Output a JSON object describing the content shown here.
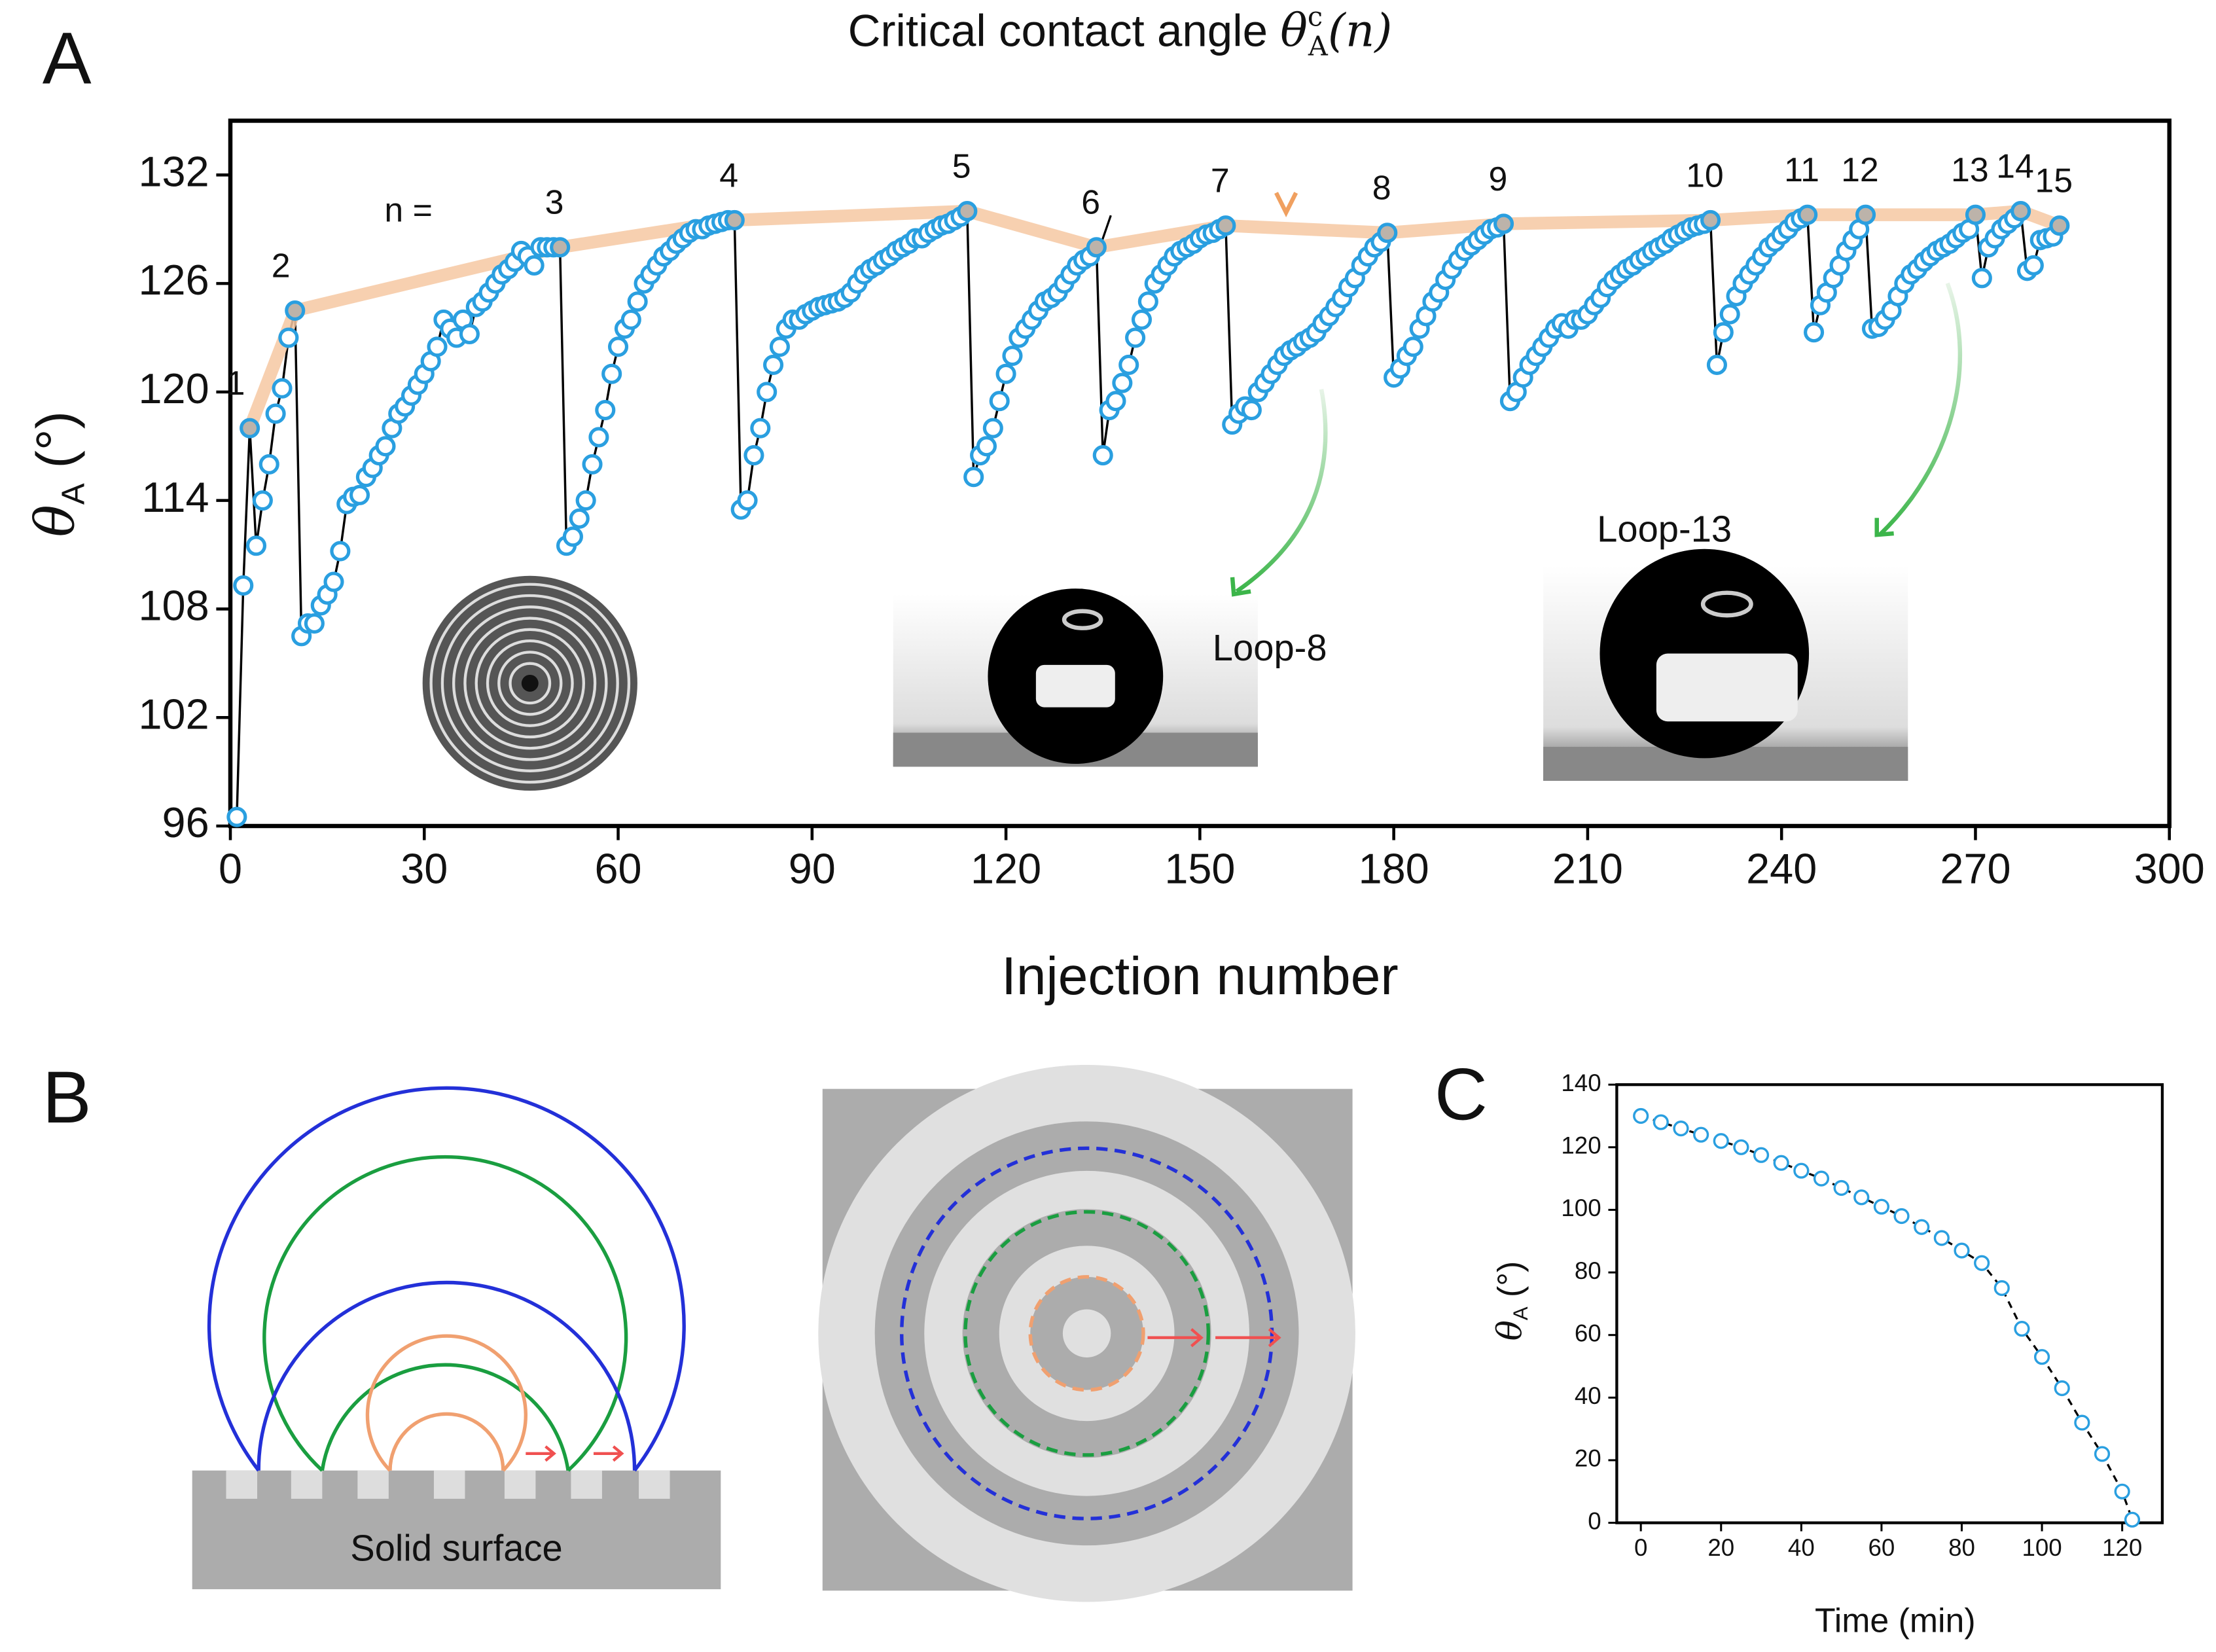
{
  "chart_data": [
    {
      "type": "scatter",
      "panel_label": "A",
      "annotation": {
        "text": "Critical contact angle ",
        "symbol": "θ",
        "sub": "A",
        "sup": "c",
        "arg": "(n)"
      },
      "x_label": "Injection number",
      "y_label": {
        "symbol": "θ",
        "sub": "A",
        "unit": " (°)"
      },
      "n_label": "n =",
      "insets": [
        "Loop-8",
        "Loop-13"
      ],
      "xlim": [
        0,
        300
      ],
      "xticks": [
        0,
        30,
        60,
        90,
        120,
        150,
        180,
        210,
        240,
        270,
        300
      ],
      "ylim": [
        96,
        135
      ],
      "yticks": [
        96,
        102,
        108,
        114,
        120,
        126,
        132
      ],
      "series": [
        {
          "color": "#2a9fe0",
          "x": [
            1,
            2,
            4,
            5,
            6,
            7,
            8,
            9,
            11,
            12,
            13,
            14,
            15,
            16,
            17,
            18,
            19,
            20,
            21,
            22,
            23,
            24,
            25,
            26,
            27,
            28,
            29,
            30,
            31,
            32,
            33,
            34,
            35,
            36,
            37,
            38,
            39,
            40,
            41,
            42,
            43,
            44,
            45,
            46,
            47,
            48,
            49,
            50,
            52,
            53,
            54,
            55,
            56,
            57,
            58,
            59,
            60,
            61,
            62,
            63,
            64,
            65,
            66,
            67,
            68,
            69,
            70,
            71,
            72,
            73,
            74,
            75,
            76,
            77,
            79,
            80,
            81,
            82,
            83,
            84,
            85,
            86,
            87,
            88,
            89,
            90,
            91,
            92,
            93,
            94,
            95,
            96,
            97,
            98,
            99,
            100,
            101,
            102,
            103,
            104,
            105,
            106,
            107,
            108,
            109,
            110,
            111,
            112,
            113,
            115,
            116,
            117,
            118,
            119,
            120,
            121,
            122,
            123,
            124,
            125,
            126,
            127,
            128,
            129,
            130,
            131,
            132,
            133,
            135,
            136,
            137,
            138,
            139,
            140,
            141,
            142,
            143,
            144,
            145,
            146,
            147,
            148,
            149,
            150,
            151,
            152,
            153,
            155,
            156,
            157,
            158,
            159,
            160,
            161,
            162,
            163,
            164,
            165,
            166,
            167,
            168,
            169,
            170,
            171,
            172,
            173,
            174,
            175,
            176,
            177,
            178,
            180,
            181,
            182,
            183,
            184,
            185,
            186,
            187,
            188,
            189,
            190,
            191,
            192,
            193,
            194,
            195,
            196,
            198,
            199,
            200,
            201,
            202,
            203,
            204,
            205,
            206,
            207,
            208,
            209,
            210,
            211,
            212,
            213,
            214,
            215,
            216,
            217,
            218,
            219,
            220,
            221,
            222,
            223,
            224,
            225,
            226,
            227,
            228,
            230,
            231,
            232,
            233,
            234,
            235,
            236,
            237,
            238,
            239,
            240,
            241,
            242,
            243,
            245,
            246,
            247,
            248,
            249,
            250,
            251,
            252,
            254,
            255,
            256,
            257,
            258,
            259,
            260,
            261,
            262,
            263,
            264,
            265,
            266,
            267,
            268,
            269,
            271,
            272,
            273,
            274,
            275,
            276,
            278,
            279,
            280,
            281,
            282
          ],
          "values": [
            96.5,
            109.3,
            111.5,
            114,
            116,
            118.8,
            120.2,
            123,
            106.5,
            107.2,
            107.2,
            108.2,
            108.8,
            109.5,
            111.2,
            113.8,
            114.2,
            114.3,
            115.3,
            115.8,
            116.5,
            117,
            118,
            118.8,
            119.2,
            119.8,
            120.4,
            121,
            121.7,
            122.5,
            124,
            123.5,
            123,
            124,
            123.2,
            124.7,
            125,
            125.5,
            126,
            126.5,
            126.8,
            127.2,
            127.8,
            127.5,
            127,
            128,
            128,
            128,
            111.5,
            112,
            113,
            114,
            116,
            117.5,
            119,
            121,
            122.5,
            123.5,
            124,
            125,
            126,
            126.5,
            127,
            127.5,
            127.8,
            128.2,
            128.5,
            128.8,
            129,
            129,
            129.2,
            129.3,
            129.4,
            129.5,
            113.5,
            114,
            116.5,
            118,
            120,
            121.5,
            122.5,
            123.5,
            124,
            124,
            124.3,
            124.5,
            124.7,
            124.8,
            124.9,
            125,
            125.2,
            125.5,
            126,
            126.5,
            126.8,
            127,
            127.3,
            127.5,
            127.8,
            128,
            128.2,
            128.5,
            128.5,
            128.8,
            129,
            129.2,
            129.3,
            129.5,
            129.7,
            115.3,
            116.5,
            117,
            118,
            119.5,
            121,
            122,
            123,
            123.5,
            124,
            124.5,
            125,
            125.2,
            125.5,
            126,
            126.5,
            127,
            127.3,
            127.5,
            116.5,
            119,
            119.5,
            120.5,
            121.5,
            123,
            124,
            125,
            126,
            126.5,
            127,
            127.5,
            127.8,
            128,
            128.2,
            128.5,
            128.7,
            128.8,
            129,
            118.2,
            118.8,
            119.2,
            119,
            120,
            120.5,
            121,
            121.5,
            122,
            122.3,
            122.5,
            122.8,
            123,
            123.3,
            123.8,
            124.2,
            124.7,
            125.2,
            125.8,
            126.3,
            127,
            127.5,
            128,
            128.3,
            120.8,
            121.3,
            122,
            122.5,
            123.5,
            124.2,
            125,
            125.5,
            126.2,
            126.8,
            127.3,
            127.8,
            128.1,
            128.4,
            128.7,
            129,
            129.1,
            119.5,
            120,
            120.8,
            121.5,
            122,
            122.5,
            123,
            123.5,
            123.8,
            123.5,
            124,
            124,
            124.3,
            124.8,
            125.2,
            125.8,
            126.2,
            126.5,
            126.8,
            127,
            127.3,
            127.5,
            127.8,
            128,
            128.2,
            128.5,
            128.7,
            128.9,
            129.1,
            129.2,
            129.3,
            121.5,
            123.3,
            124.3,
            125.3,
            126,
            126.5,
            127,
            127.5,
            128,
            128.3,
            128.7,
            129,
            129.4,
            129.6,
            123.3,
            124.8,
            125.5,
            126.3,
            127,
            127.8,
            128.4,
            129,
            123.5,
            123.6,
            124,
            124.5,
            125.3,
            126,
            126.5,
            126.8,
            127.2,
            127.5,
            127.8,
            128,
            128.2,
            128.5,
            128.8,
            129,
            126.3,
            128,
            128.5,
            129,
            129.3,
            129.6,
            126.7,
            127,
            128.4,
            128.5,
            128.6
          ]
        },
        {
          "color": "#bcb3aa",
          "line_color": "#f6c8a2",
          "x": [
            3,
            10,
            51,
            78,
            114,
            134,
            154,
            179,
            197,
            229,
            244,
            253,
            270,
            277,
            283
          ],
          "values": [
            118,
            124.5,
            128,
            129.5,
            130,
            128,
            129.2,
            128.8,
            129.3,
            129.5,
            129.8,
            129.8,
            129.8,
            130,
            129.2
          ],
          "labels": [
            "1",
            "2",
            "3",
            "4",
            "5",
            "6",
            "7",
            "8",
            "9",
            "10",
            "11",
            "12",
            "13",
            "14",
            "15"
          ]
        }
      ]
    },
    {
      "type": "scatter",
      "panel_label": "C",
      "x_label": "Time (min)",
      "y_label": {
        "symbol": "θ",
        "sub": "A",
        "unit": " (°)"
      },
      "xlim": [
        -6,
        130
      ],
      "xticks": [
        0,
        20,
        40,
        60,
        80,
        100,
        120
      ],
      "ylim": [
        0,
        140
      ],
      "yticks": [
        0,
        20,
        40,
        60,
        80,
        100,
        120,
        140
      ],
      "color": "#2a9fe0",
      "x": [
        0,
        5,
        10,
        15,
        20,
        25,
        30,
        35,
        40,
        45,
        50,
        55,
        60,
        65,
        70,
        75,
        80,
        85,
        90,
        95,
        100,
        105,
        110,
        115,
        120,
        122.5
      ],
      "values": [
        130,
        128,
        126,
        124,
        122,
        120,
        117.5,
        115,
        112.5,
        110,
        107,
        104,
        101,
        98,
        94.5,
        91,
        87,
        83,
        75,
        62,
        53,
        43,
        32,
        22,
        10,
        1
      ]
    }
  ],
  "diagram": {
    "panel_label": "B",
    "surface_label": "Solid surface"
  }
}
